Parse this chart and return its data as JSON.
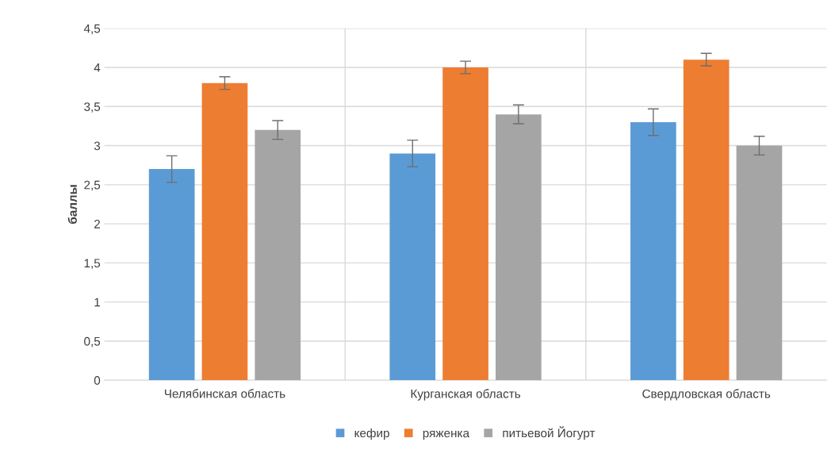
{
  "chart_data": {
    "type": "bar",
    "ylabel": "баллы",
    "categories": [
      "Челябинская область",
      "Курганская область",
      "Свердловская область"
    ],
    "series": [
      {
        "name": "кефир",
        "color": "#5b9bd5",
        "values": [
          2.7,
          2.9,
          3.3
        ],
        "errors": [
          0.17,
          0.17,
          0.17
        ]
      },
      {
        "name": "ряженка",
        "color": "#ed7d31",
        "values": [
          3.8,
          4.0,
          4.1
        ],
        "errors": [
          0.08,
          0.08,
          0.08
        ]
      },
      {
        "name": "питьевой Йогурт",
        "color": "#a5a5a5",
        "values": [
          3.2,
          3.4,
          3.0
        ],
        "errors": [
          0.12,
          0.12,
          0.12
        ]
      }
    ],
    "ylim": [
      0,
      4.5
    ],
    "yticks": [
      0,
      {
        "value": 0.5,
        "label": "0,5"
      },
      1,
      {
        "value": 1.5,
        "label": "1,5"
      },
      2,
      {
        "value": 2.5,
        "label": "2,5"
      },
      3,
      {
        "value": 3.5,
        "label": "3,5"
      },
      4,
      {
        "value": 4.5,
        "label": "4,5"
      }
    ],
    "grid": true,
    "legend": "bottom"
  }
}
